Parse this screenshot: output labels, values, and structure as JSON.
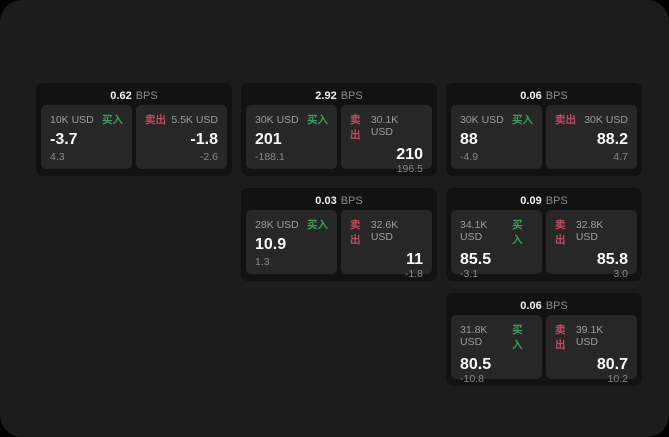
{
  "labels": {
    "buy": "买入",
    "sell": "卖出",
    "bps": "BPS"
  },
  "colors": {
    "buy": "#36a05a",
    "sell": "#c64862",
    "panel_bg": "#1c1c1c",
    "card_bg": "#121212",
    "subpanel_bg": "#272727"
  },
  "cards": [
    {
      "bps": "0.62",
      "buy": {
        "amount": "10K USD",
        "value": "-3.7",
        "delta": "4.3"
      },
      "sell": {
        "amount": "5.5K USD",
        "value": "-1.8",
        "delta": "-2.6"
      }
    },
    {
      "bps": "2.92",
      "buy": {
        "amount": "30K USD",
        "value": "201",
        "delta": "-188.1"
      },
      "sell": {
        "amount": "30.1K USD",
        "value": "210",
        "delta": "196.5"
      }
    },
    {
      "bps": "0.06",
      "buy": {
        "amount": "30K USD",
        "value": "88",
        "delta": "-4.9"
      },
      "sell": {
        "amount": "30K USD",
        "value": "88.2",
        "delta": "4.7"
      }
    },
    {
      "bps": "0.03",
      "buy": {
        "amount": "28K USD",
        "value": "10.9",
        "delta": "1.3"
      },
      "sell": {
        "amount": "32.6K USD",
        "value": "11",
        "delta": "-1.8"
      }
    },
    {
      "bps": "0.09",
      "buy": {
        "amount": "34.1K USD",
        "value": "85.5",
        "delta": "-3.1"
      },
      "sell": {
        "amount": "32.8K USD",
        "value": "85.8",
        "delta": "3.0"
      }
    },
    {
      "bps": "0.06",
      "buy": {
        "amount": "31.8K USD",
        "value": "80.5",
        "delta": "-10.8"
      },
      "sell": {
        "amount": "39.1K USD",
        "value": "80.7",
        "delta": "10.2"
      }
    }
  ]
}
